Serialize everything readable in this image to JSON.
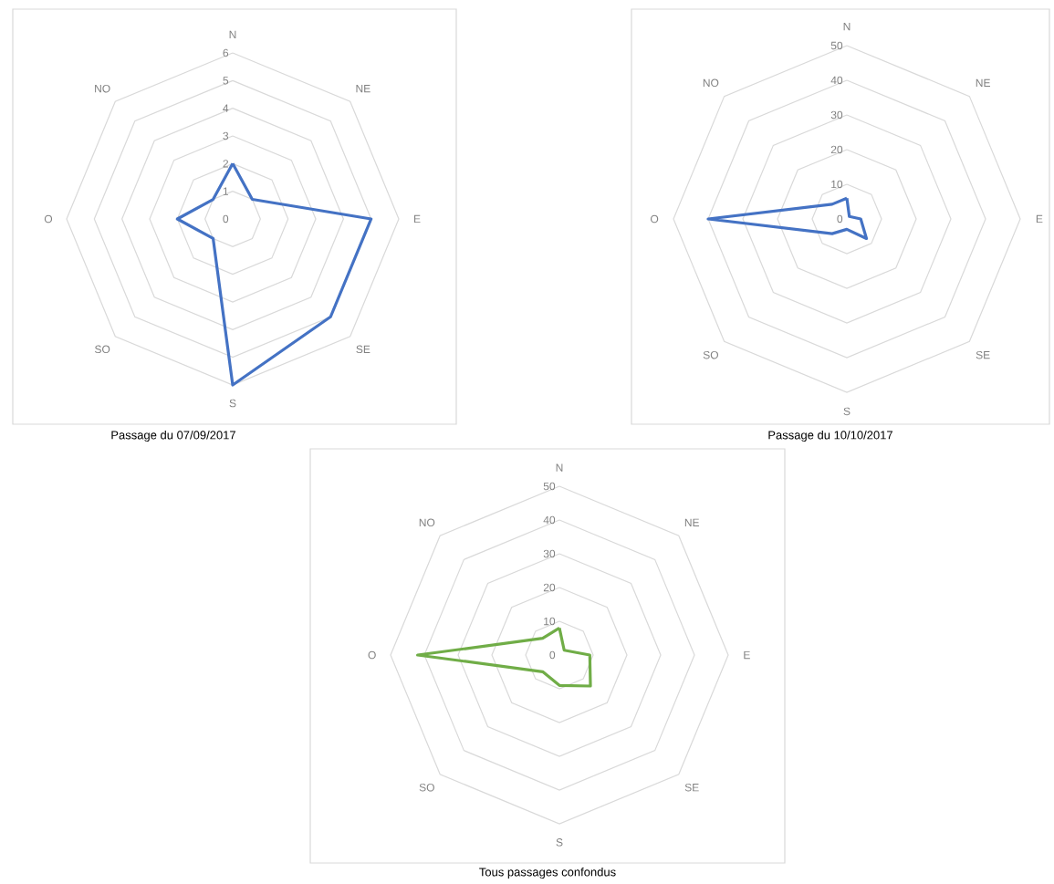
{
  "chart_data": [
    {
      "type": "radar",
      "title": "Passage du 07/09/2017",
      "categories": [
        "N",
        "NE",
        "E",
        "SE",
        "S",
        "SO",
        "O",
        "NO"
      ],
      "series": [
        {
          "color": "#4472c4",
          "values": [
            2,
            1,
            5,
            5,
            6,
            1,
            2,
            1
          ]
        }
      ],
      "ylim": [
        0,
        6
      ],
      "yticks": [
        0,
        1,
        2,
        3,
        4,
        5,
        6
      ],
      "grid": true
    },
    {
      "type": "radar",
      "title": "Passage du 10/10/2017",
      "categories": [
        "N",
        "NE",
        "E",
        "SE",
        "S",
        "SO",
        "O",
        "NO"
      ],
      "series": [
        {
          "color": "#4472c4",
          "values": [
            6,
            1,
            4,
            8,
            3,
            6,
            40,
            6
          ]
        }
      ],
      "ylim": [
        0,
        50
      ],
      "yticks": [
        0,
        10,
        20,
        30,
        40,
        50
      ],
      "grid": true
    },
    {
      "type": "radar",
      "title": "Tous passages confondus",
      "categories": [
        "N",
        "NE",
        "E",
        "SE",
        "S",
        "SO",
        "O",
        "NO"
      ],
      "series": [
        {
          "color": "#70ad47",
          "values": [
            8,
            2,
            9,
            13,
            9,
            7,
            42,
            7
          ]
        }
      ],
      "ylim": [
        0,
        50
      ],
      "yticks": [
        0,
        10,
        20,
        30,
        40,
        50
      ],
      "grid": true
    }
  ]
}
